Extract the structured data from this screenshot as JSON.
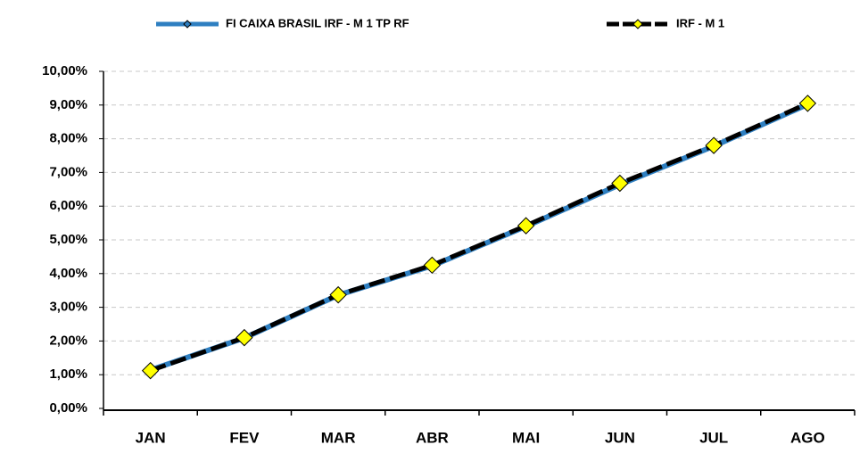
{
  "chart_data": {
    "type": "line",
    "categories": [
      "JAN",
      "FEV",
      "MAR",
      "ABR",
      "MAI",
      "JUN",
      "JUL",
      "AGO"
    ],
    "series": [
      {
        "name": "FI CAIXA BRASIL IRF - M 1 TP RF",
        "color": "#2e7fc1",
        "line_style": "solid",
        "marker_color": "#2e7fc1",
        "marker_size": "small",
        "values": [
          1.14,
          2.09,
          3.36,
          4.23,
          5.4,
          6.64,
          7.78,
          9.02
        ]
      },
      {
        "name": "IRF - M 1",
        "color": "#000000",
        "line_style": "dashed",
        "marker_color": "#ffff00",
        "marker_size": "large",
        "values": [
          1.12,
          2.1,
          3.37,
          4.25,
          5.42,
          6.68,
          7.8,
          9.05
        ]
      }
    ],
    "ylim": [
      0,
      10
    ],
    "yticks": [
      {
        "value": 0,
        "label": "0,00%"
      },
      {
        "value": 1,
        "label": "1,00%"
      },
      {
        "value": 2,
        "label": "2,00%"
      },
      {
        "value": 3,
        "label": "3,00%"
      },
      {
        "value": 4,
        "label": "4,00%"
      },
      {
        "value": 5,
        "label": "5,00%"
      },
      {
        "value": 6,
        "label": "6,00%"
      },
      {
        "value": 7,
        "label": "7,00%"
      },
      {
        "value": 8,
        "label": "8,00%"
      },
      {
        "value": 9,
        "label": "9,00%"
      },
      {
        "value": 10,
        "label": "10,00%"
      }
    ],
    "grid": true,
    "legend": "top"
  }
}
